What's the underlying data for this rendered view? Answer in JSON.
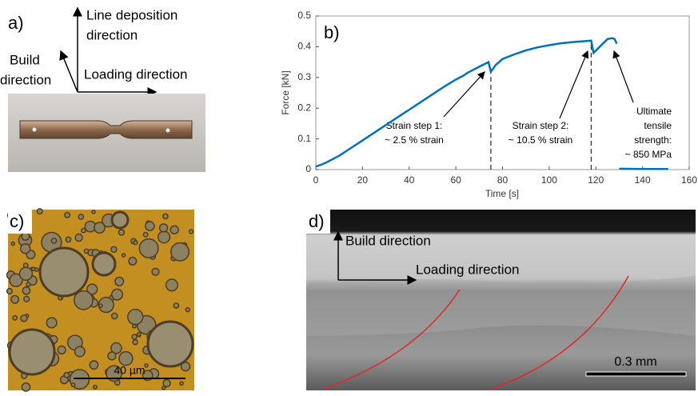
{
  "panel_a": {
    "label": "a)",
    "line_deposition": [
      "Line deposition",
      "direction"
    ],
    "build": [
      "Build",
      "direction"
    ],
    "loading": "Loading direction"
  },
  "chart_data": {
    "type": "line",
    "label": "b)",
    "xlabel": "Time [s]",
    "ylabel": "Force [kN]",
    "color": "#0072bd",
    "x": [
      0,
      2,
      5,
      10,
      15,
      20,
      25,
      30,
      35,
      40,
      45,
      50,
      55,
      60,
      63,
      65,
      70,
      74,
      75,
      77,
      80,
      85,
      90,
      95,
      100,
      105,
      110,
      115,
      118,
      119,
      121,
      123,
      125,
      127,
      128,
      129,
      130,
      130,
      140,
      151
    ],
    "values": [
      0.01,
      0.015,
      0.025,
      0.045,
      0.07,
      0.095,
      0.12,
      0.145,
      0.17,
      0.195,
      0.22,
      0.245,
      0.27,
      0.293,
      0.305,
      0.315,
      0.335,
      0.35,
      0.318,
      0.34,
      0.36,
      0.375,
      0.388,
      0.398,
      0.405,
      0.411,
      0.415,
      0.418,
      0.42,
      0.38,
      0.395,
      0.41,
      0.425,
      0.428,
      0.425,
      0.41,
      null,
      0.003,
      0.002,
      0.002
    ],
    "xlim": [
      0,
      160
    ],
    "ylim": [
      0,
      0.5
    ],
    "xticks": [
      0,
      20,
      40,
      60,
      80,
      100,
      120,
      140,
      160
    ],
    "yticks": [
      0,
      0.1,
      0.2,
      0.3,
      0.4,
      0.5
    ],
    "reference_lines": [
      {
        "x": 75,
        "y": 0.33
      },
      {
        "x": 118,
        "y": 0.42
      }
    ],
    "annotations": [
      [
        "Strain step 1:",
        "~ 2.5 % strain"
      ],
      [
        "Strain step 2:",
        "~ 10.5 % strain"
      ],
      [
        "Ultimate",
        "tensile",
        "strength:",
        "~ 850 MPa"
      ]
    ]
  },
  "panel_c": {
    "label": "c)",
    "scale": "40 µm"
  },
  "panel_d": {
    "label": "d)",
    "build": "Build direction",
    "loading": "Loading direction",
    "scale": "0.3 mm"
  }
}
